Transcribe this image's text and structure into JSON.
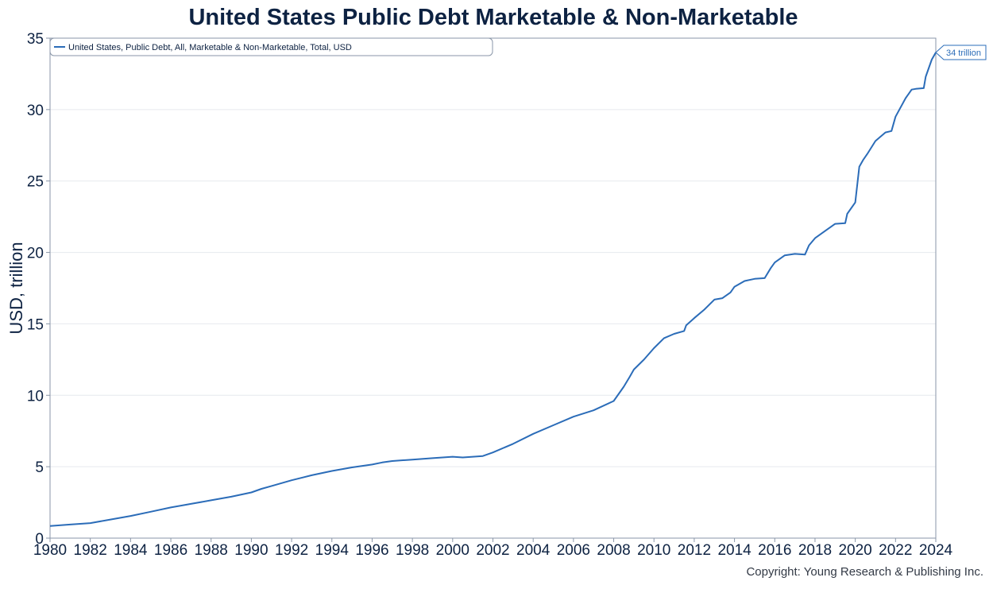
{
  "title": "United States Public Debt Marketable & Non-Marketable",
  "copyright": "Copyright: Young Research & Publishing Inc.",
  "colors": {
    "line": "#2b6cb8",
    "text": "#0d2242",
    "grid": "#e6e9ee",
    "frame": "#8a96a8"
  },
  "chart_data": {
    "type": "line",
    "title": "United States Public Debt Marketable & Non-Marketable",
    "xlabel": "",
    "ylabel": "USD, trillion",
    "xlim": [
      1980,
      2024
    ],
    "ylim": [
      0,
      35
    ],
    "x_ticks": [
      "1980",
      "1982",
      "1984",
      "1986",
      "1988",
      "1990",
      "1992",
      "1994",
      "1996",
      "1998",
      "2000",
      "2002",
      "2004",
      "2006",
      "2008",
      "2010",
      "2012",
      "2014",
      "2016",
      "2018",
      "2020",
      "2022",
      "2024"
    ],
    "y_ticks": [
      "0",
      "5",
      "10",
      "15",
      "20",
      "25",
      "30",
      "35"
    ],
    "grid": "horizontal",
    "legend_position": "top-left",
    "callout": "34 trillion",
    "series": [
      {
        "name": "United States, Public Debt, All, Marketable & Non-Marketable, Total, USD",
        "x": [
          1980.0,
          1981.0,
          1982.0,
          1983.0,
          1984.0,
          1985.0,
          1986.0,
          1987.0,
          1988.0,
          1989.0,
          1990.0,
          1990.5,
          1991.0,
          1992.0,
          1993.0,
          1994.0,
          1995.0,
          1996.0,
          1996.5,
          1997.0,
          1998.0,
          1999.0,
          2000.0,
          2000.5,
          2001.0,
          2001.5,
          2002.0,
          2003.0,
          2004.0,
          2005.0,
          2006.0,
          2007.0,
          2008.0,
          2008.5,
          2008.8,
          2009.0,
          2009.5,
          2010.0,
          2010.5,
          2011.0,
          2011.5,
          2011.6,
          2012.0,
          2012.5,
          2013.0,
          2013.4,
          2013.8,
          2014.0,
          2014.5,
          2015.0,
          2015.5,
          2015.8,
          2016.0,
          2016.5,
          2017.0,
          2017.5,
          2017.7,
          2018.0,
          2018.5,
          2019.0,
          2019.5,
          2019.6,
          2020.0,
          2020.2,
          2020.4,
          2020.6,
          2021.0,
          2021.5,
          2021.8,
          2022.0,
          2022.5,
          2022.8,
          2023.0,
          2023.4,
          2023.5,
          2023.8,
          2024.0
        ],
        "values": [
          0.85,
          0.95,
          1.05,
          1.3,
          1.55,
          1.85,
          2.15,
          2.4,
          2.65,
          2.9,
          3.2,
          3.45,
          3.65,
          4.05,
          4.4,
          4.7,
          4.95,
          5.15,
          5.3,
          5.4,
          5.5,
          5.6,
          5.7,
          5.65,
          5.7,
          5.75,
          6.0,
          6.6,
          7.3,
          7.9,
          8.5,
          8.95,
          9.6,
          10.6,
          11.3,
          11.8,
          12.5,
          13.3,
          14.0,
          14.3,
          14.5,
          14.9,
          15.4,
          16.0,
          16.7,
          16.8,
          17.2,
          17.6,
          18.0,
          18.15,
          18.2,
          18.9,
          19.3,
          19.8,
          19.9,
          19.85,
          20.5,
          21.0,
          21.5,
          22.0,
          22.05,
          22.7,
          23.5,
          26.0,
          26.5,
          26.9,
          27.8,
          28.4,
          28.5,
          29.5,
          30.8,
          31.4,
          31.45,
          31.5,
          32.3,
          33.5,
          34.0
        ]
      }
    ]
  }
}
